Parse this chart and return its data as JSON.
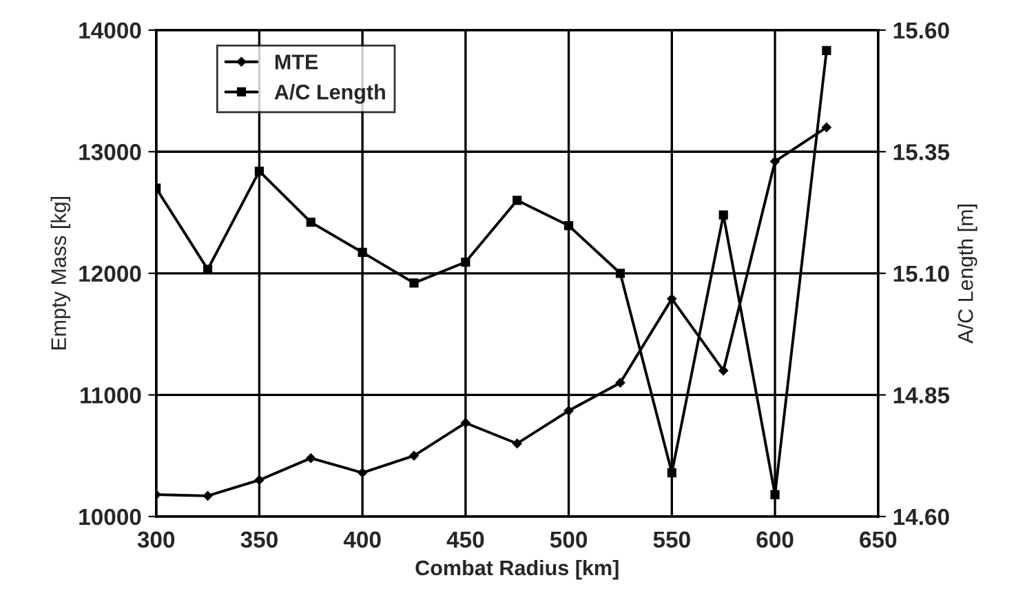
{
  "chart_data": {
    "type": "line",
    "xlabel": "Combat Radius [km]",
    "ylabel": "Empty Mass [kg]",
    "y2label": "A/C Length [m]",
    "x": [
      300,
      325,
      350,
      375,
      400,
      425,
      450,
      475,
      500,
      525,
      550,
      575,
      600,
      625
    ],
    "series": [
      {
        "name": "MTE",
        "color": "#000000",
        "marker": "diamond",
        "values": [
          10180,
          10170,
          10300,
          10480,
          10360,
          10500,
          10770,
          10600,
          10870,
          11100,
          11790,
          11200,
          12920,
          13200
        ]
      },
      {
        "name": "A/C Length",
        "color": "#000000",
        "marker": "square",
        "axis": "y2",
        "values": [
          15.275,
          15.108,
          15.31,
          15.205,
          15.143,
          15.08,
          15.123,
          15.25,
          15.198,
          15.1,
          14.69,
          15.22,
          14.645,
          15.558
        ]
      }
    ],
    "xlim": [
      300,
      650
    ],
    "xticks": [
      300,
      350,
      400,
      450,
      500,
      550,
      600,
      650
    ],
    "ylim": [
      10000,
      14000
    ],
    "yticks": [
      10000,
      11000,
      12000,
      13000,
      14000
    ],
    "y2lim": [
      14.6,
      15.6
    ],
    "y2ticks": [
      {
        "value": 14.6,
        "label": "14.60"
      },
      14.85,
      {
        "value": 15.1,
        "label": "15.10"
      },
      15.35,
      {
        "value": 15.6,
        "label": "15.60"
      }
    ],
    "grid": true,
    "legend": "top left",
    "line_style": "solid"
  }
}
